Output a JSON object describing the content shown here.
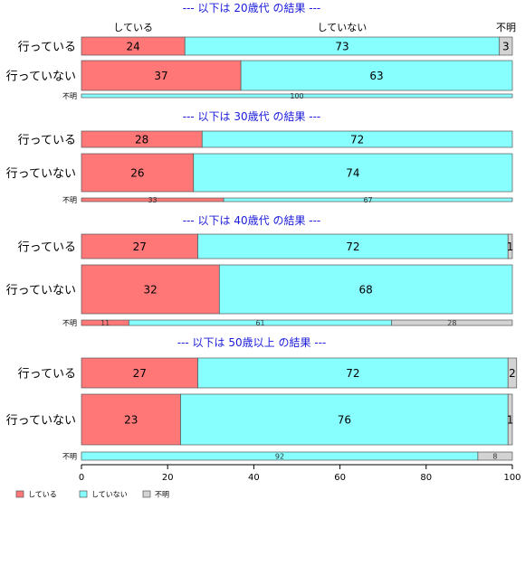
{
  "chart_data": {
    "type": "bar",
    "orientation": "horizontal",
    "stacked": true,
    "xlim": [
      0,
      100
    ],
    "x_ticks": [
      "0",
      "20",
      "40",
      "60",
      "80",
      "100"
    ],
    "header_labels": [
      "している",
      "していない",
      "不明"
    ],
    "series_names": [
      "している",
      "していない",
      "不明"
    ],
    "legend": {
      "position": "bottom-left",
      "entries": [
        "している",
        "していない",
        "不明"
      ]
    },
    "colors": {
      "している": "#ff7777",
      "していない": "#88ffff",
      "不明": "#d3d3d3",
      "title": "#1a1adb"
    },
    "panels": [
      {
        "title": "--- 以下は 20歳代 の結果 ---",
        "rows": [
          {
            "label": "行っている",
            "values": [
              24,
              73,
              3
            ],
            "labels": [
              "24",
              "73",
              "3"
            ]
          },
          {
            "label": "行っていない",
            "values": [
              37,
              63,
              0
            ],
            "labels": [
              "37",
              "63",
              ""
            ]
          },
          {
            "label": "不明",
            "values": [
              0,
              100,
              0
            ],
            "labels": [
              "",
              "100",
              ""
            ]
          }
        ]
      },
      {
        "title": "--- 以下は 30歳代 の結果 ---",
        "rows": [
          {
            "label": "行っている",
            "values": [
              28,
              72,
              0
            ],
            "labels": [
              "28",
              "72",
              ""
            ]
          },
          {
            "label": "行っていない",
            "values": [
              26,
              74,
              0
            ],
            "labels": [
              "26",
              "74",
              ""
            ]
          },
          {
            "label": "不明",
            "values": [
              33,
              67,
              0
            ],
            "labels": [
              "33",
              "67",
              ""
            ]
          }
        ]
      },
      {
        "title": "--- 以下は 40歳代 の結果 ---",
        "rows": [
          {
            "label": "行っている",
            "values": [
              27,
              72,
              1
            ],
            "labels": [
              "27",
              "72",
              "1"
            ]
          },
          {
            "label": "行っていない",
            "values": [
              32,
              68,
              0
            ],
            "labels": [
              "32",
              "68",
              ""
            ]
          },
          {
            "label": "不明",
            "values": [
              11,
              61,
              28
            ],
            "labels": [
              "11",
              "61",
              "28"
            ]
          }
        ]
      },
      {
        "title": "--- 以下は 50歳以上 の結果 ---",
        "rows": [
          {
            "label": "行っている",
            "values": [
              27,
              72,
              2
            ],
            "labels": [
              "27",
              "72",
              "2"
            ]
          },
          {
            "label": "行っていない",
            "values": [
              23,
              76,
              1
            ],
            "labels": [
              "23",
              "76",
              "1"
            ]
          },
          {
            "label": "不明",
            "values": [
              0,
              92,
              8
            ],
            "labels": [
              "",
              "92",
              "8"
            ]
          }
        ]
      }
    ]
  }
}
